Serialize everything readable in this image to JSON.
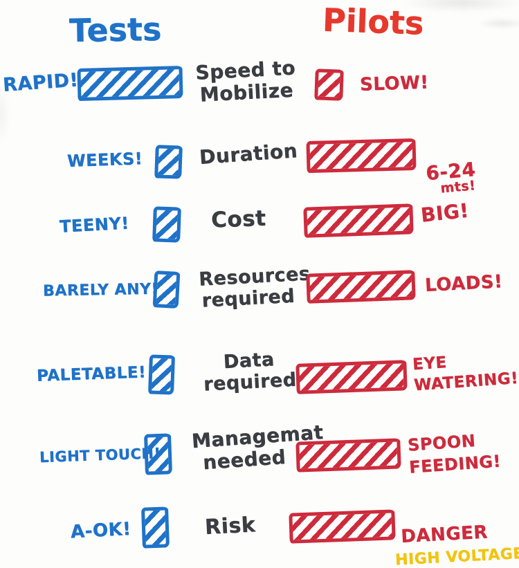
{
  "header": {
    "tests": "Tests",
    "pilots": "Pilots"
  },
  "colors": {
    "blue": "#1f72c8",
    "red": "#cd2b3c",
    "brightred": "#e6392d",
    "yellow": "#f2c411",
    "ink": "#3a3d42",
    "paper": "#fdfdfc"
  },
  "rows": [
    {
      "criterion": "Speed to\nMobilize",
      "tests": {
        "label": "RAPID!",
        "bar_size": "long"
      },
      "pilots": {
        "label": "SLOW!",
        "bar_size": "small"
      }
    },
    {
      "criterion": "Duration",
      "tests": {
        "label": "WEEKS!",
        "bar_size": "small"
      },
      "pilots": {
        "label": "6-24",
        "sublabel": "mts!",
        "bar_size": "long"
      }
    },
    {
      "criterion": "Cost",
      "tests": {
        "label": "TEENY!",
        "bar_size": "small"
      },
      "pilots": {
        "label": "BIG!",
        "bar_size": "long"
      }
    },
    {
      "criterion": "Resources\nrequired",
      "tests": {
        "label": "BARELY ANY!",
        "bar_size": "small"
      },
      "pilots": {
        "label": "LOADS!",
        "bar_size": "long"
      }
    },
    {
      "criterion": "Data\nrequired",
      "tests": {
        "label": "PALETABLE!",
        "bar_size": "small"
      },
      "pilots": {
        "label": "EYE\nWATERING!",
        "bar_size": "long"
      }
    },
    {
      "criterion": "Managemat\nneeded",
      "tests": {
        "label": "LIGHT TOUCH!",
        "bar_size": "small"
      },
      "pilots": {
        "label": "SPOON\nFEEDING!",
        "bar_size": "long"
      }
    },
    {
      "criterion": "Risk",
      "tests": {
        "label": "A-OK!",
        "bar_size": "small"
      },
      "pilots": {
        "label": "DANGER",
        "sublabel": "HIGH VOLTAGE!",
        "sublabel_color": "#f2c411",
        "bar_size": "long"
      }
    }
  ]
}
